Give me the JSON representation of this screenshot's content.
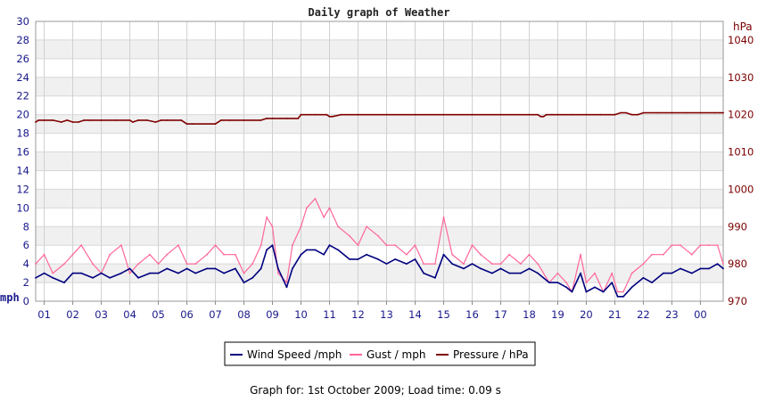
{
  "chart_data": {
    "type": "line",
    "title": "Daily graph of Weather",
    "y_left": {
      "unit": "mph",
      "range": [
        0,
        30
      ],
      "ticks": [
        "0",
        "2",
        "4",
        "6",
        "8",
        "10",
        "12",
        "14",
        "16",
        "18",
        "20",
        "22",
        "24",
        "26",
        "28",
        "30"
      ]
    },
    "y_right": {
      "unit": "hPa",
      "range": [
        970,
        1045
      ],
      "ticks": [
        "970",
        "980",
        "990",
        "1000",
        "1010",
        "1020",
        "1030",
        "1040"
      ]
    },
    "x_ticks": [
      "01",
      "02",
      "03",
      "04",
      "05",
      "06",
      "07",
      "08",
      "09",
      "10",
      "11",
      "12",
      "13",
      "14",
      "15",
      "16",
      "17",
      "18",
      "19",
      "20",
      "21",
      "22",
      "23",
      "00"
    ],
    "x_range": [
      0.7,
      24.8
    ],
    "grid": true,
    "legend_position": "bottom",
    "series": [
      {
        "name": "Wind Speed /mph",
        "axis": "left",
        "color": "#00007f",
        "x": [
          0.7,
          1.0,
          1.3,
          1.7,
          2.0,
          2.3,
          2.7,
          3.0,
          3.3,
          3.7,
          4.0,
          4.3,
          4.7,
          5.0,
          5.3,
          5.7,
          6.0,
          6.3,
          6.7,
          7.0,
          7.3,
          7.7,
          8.0,
          8.3,
          8.6,
          8.8,
          9.0,
          9.2,
          9.5,
          9.7,
          10.0,
          10.2,
          10.5,
          10.8,
          11.0,
          11.3,
          11.7,
          12.0,
          12.3,
          12.7,
          13.0,
          13.3,
          13.7,
          14.0,
          14.3,
          14.7,
          15.0,
          15.3,
          15.7,
          16.0,
          16.3,
          16.7,
          17.0,
          17.3,
          17.7,
          18.0,
          18.3,
          18.7,
          19.0,
          19.3,
          19.5,
          19.8,
          20.0,
          20.3,
          20.6,
          20.9,
          21.1,
          21.3,
          21.6,
          22.0,
          22.3,
          22.7,
          23.0,
          23.3,
          23.7,
          24.0,
          24.3,
          24.6,
          24.8
        ],
        "values": [
          2.5,
          3.0,
          2.5,
          2.0,
          3.0,
          3.0,
          2.5,
          3.0,
          2.5,
          3.0,
          3.5,
          2.5,
          3.0,
          3.0,
          3.5,
          3.0,
          3.5,
          3.0,
          3.5,
          3.5,
          3.0,
          3.5,
          2.0,
          2.5,
          3.5,
          5.5,
          6.0,
          3.5,
          1.5,
          3.5,
          5.0,
          5.5,
          5.5,
          5.0,
          6.0,
          5.5,
          4.5,
          4.5,
          5.0,
          4.5,
          4.0,
          4.5,
          4.0,
          4.5,
          3.0,
          2.5,
          5.0,
          4.0,
          3.5,
          4.0,
          3.5,
          3.0,
          3.5,
          3.0,
          3.0,
          3.5,
          3.0,
          2.0,
          2.0,
          1.5,
          1.0,
          3.0,
          1.0,
          1.5,
          1.0,
          2.0,
          0.5,
          0.5,
          1.5,
          2.5,
          2.0,
          3.0,
          3.0,
          3.5,
          3.0,
          3.5,
          3.5,
          4.0,
          3.5
        ]
      },
      {
        "name": "Gust / mph",
        "axis": "left",
        "color": "#ff6699",
        "x": [
          0.7,
          1.0,
          1.3,
          1.7,
          2.0,
          2.3,
          2.7,
          3.0,
          3.3,
          3.7,
          4.0,
          4.3,
          4.7,
          5.0,
          5.3,
          5.7,
          6.0,
          6.3,
          6.7,
          7.0,
          7.3,
          7.7,
          8.0,
          8.3,
          8.6,
          8.8,
          9.0,
          9.2,
          9.5,
          9.7,
          10.0,
          10.2,
          10.5,
          10.8,
          11.0,
          11.3,
          11.7,
          12.0,
          12.3,
          12.7,
          13.0,
          13.3,
          13.7,
          14.0,
          14.3,
          14.7,
          15.0,
          15.3,
          15.7,
          16.0,
          16.3,
          16.7,
          17.0,
          17.3,
          17.7,
          18.0,
          18.3,
          18.7,
          19.0,
          19.3,
          19.5,
          19.8,
          20.0,
          20.3,
          20.6,
          20.9,
          21.1,
          21.3,
          21.6,
          22.0,
          22.3,
          22.7,
          23.0,
          23.3,
          23.7,
          24.0,
          24.3,
          24.6,
          24.8
        ],
        "values": [
          4,
          5,
          3,
          4,
          5,
          6,
          4,
          3,
          5,
          6,
          3,
          4,
          5,
          4,
          5,
          6,
          4,
          4,
          5,
          6,
          5,
          5,
          3,
          4,
          6,
          9,
          8,
          3,
          2,
          6,
          8,
          10,
          11,
          9,
          10,
          8,
          7,
          6,
          8,
          7,
          6,
          6,
          5,
          6,
          4,
          4,
          9,
          5,
          4,
          6,
          5,
          4,
          4,
          5,
          4,
          5,
          4,
          2,
          3,
          2,
          1,
          5,
          2,
          3,
          1,
          3,
          1,
          1,
          3,
          4,
          5,
          5,
          6,
          6,
          5,
          6,
          6,
          6,
          4
        ]
      },
      {
        "name": "Pressure / hPa",
        "axis": "right",
        "color": "#800000",
        "x": [
          0.7,
          0.8,
          1.0,
          1.3,
          1.6,
          1.8,
          2.0,
          2.2,
          2.4,
          2.6,
          3.0,
          3.5,
          4.0,
          4.1,
          4.3,
          4.6,
          4.9,
          5.1,
          5.3,
          5.8,
          6.0,
          6.2,
          7.0,
          7.2,
          7.5,
          8.0,
          8.6,
          8.8,
          9.0,
          9.5,
          9.9,
          10.0,
          10.5,
          10.9,
          11.0,
          11.1,
          11.4,
          12.0,
          13.0,
          14.0,
          15.0,
          16.0,
          17.0,
          18.0,
          18.3,
          18.4,
          18.5,
          18.6,
          18.8,
          19.0,
          19.5,
          20.0,
          20.5,
          21.0,
          21.2,
          21.4,
          21.6,
          21.8,
          22.0,
          22.5,
          23.0,
          23.5,
          24.0,
          24.5,
          24.8
        ],
        "values": [
          1018,
          1018.5,
          1018.5,
          1018.5,
          1018,
          1018.5,
          1018,
          1018,
          1018.5,
          1018.5,
          1018.5,
          1018.5,
          1018.5,
          1018,
          1018.5,
          1018.5,
          1018,
          1018.5,
          1018.5,
          1018.5,
          1017.5,
          1017.5,
          1017.5,
          1018.5,
          1018.5,
          1018.5,
          1018.5,
          1019,
          1019,
          1019,
          1019,
          1020,
          1020,
          1020,
          1019.5,
          1019.5,
          1020,
          1020,
          1020,
          1020,
          1020,
          1020,
          1020,
          1020,
          1020,
          1019.5,
          1019.5,
          1020,
          1020,
          1020,
          1020,
          1020,
          1020,
          1020,
          1020.5,
          1020.5,
          1020,
          1020,
          1020.5,
          1020.5,
          1020.5,
          1020.5,
          1020.5,
          1020.5,
          1020.5
        ]
      }
    ]
  },
  "footer": {
    "text": "Graph for: 1st October 2009; Load time: 0.09 s"
  }
}
